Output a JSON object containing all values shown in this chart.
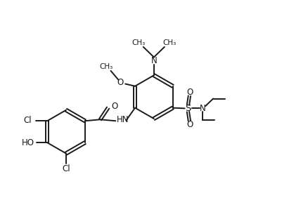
{
  "bg_color": "#ffffff",
  "line_color": "#1a1a1a",
  "line_width": 1.4,
  "font_size": 8.5,
  "figsize": [
    4.02,
    3.12
  ],
  "dpi": 100,
  "xlim": [
    0,
    10
  ],
  "ylim": [
    0,
    7.8
  ]
}
